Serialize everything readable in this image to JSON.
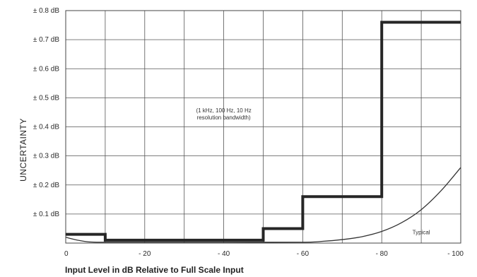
{
  "chart_data": {
    "type": "line",
    "title": "",
    "xlabel": "Input Level in dB Relative to Full Scale Input",
    "ylabel": "UNCERTAINTY",
    "xlim": [
      0,
      -100
    ],
    "ylim": [
      0,
      0.8
    ],
    "x_ticks": [
      0,
      -20,
      -40,
      -60,
      -80,
      -100
    ],
    "x_tick_labels": [
      "0",
      "- 20",
      "- 40",
      "- 60",
      "- 80",
      "- 100"
    ],
    "y_ticks": [
      0.1,
      0.2,
      0.3,
      0.4,
      0.5,
      0.6,
      0.7,
      0.8
    ],
    "y_tick_labels": [
      "± 0.1 dB",
      "± 0.2 dB",
      "± 0.3 dB",
      "± 0.4 dB",
      "± 0.5 dB",
      "± 0.6 dB",
      "± 0.7 dB",
      "± 0.8 dB"
    ],
    "grid": true,
    "series": [
      {
        "style": "step-thick",
        "x": [
          0,
          -10,
          -10,
          -50,
          -50,
          -60,
          -60,
          -80,
          -80,
          -100
        ],
        "y": [
          0.03,
          0.03,
          0.01,
          0.01,
          0.05,
          0.05,
          0.16,
          0.16,
          0.76,
          0.76
        ]
      },
      {
        "name": "Typical",
        "style": "curve-thin",
        "x": [
          0,
          -3,
          -6,
          -10,
          -20,
          -40,
          -60,
          -65,
          -70,
          -75,
          -80,
          -85,
          -90,
          -95,
          -100
        ],
        "y": [
          0.02,
          0.01,
          0.004,
          0.003,
          0.003,
          0.003,
          0.003,
          0.006,
          0.012,
          0.022,
          0.04,
          0.07,
          0.115,
          0.18,
          0.26
        ]
      }
    ],
    "annotations": [
      {
        "text_lines": [
          "(1 kHz, 100 Hz, 10 Hz",
          "resolution bandwidth)"
        ],
        "x": -40,
        "y": 0.45
      },
      {
        "text_lines": [
          "Typical"
        ],
        "x": -90,
        "y": 0.03
      }
    ]
  }
}
